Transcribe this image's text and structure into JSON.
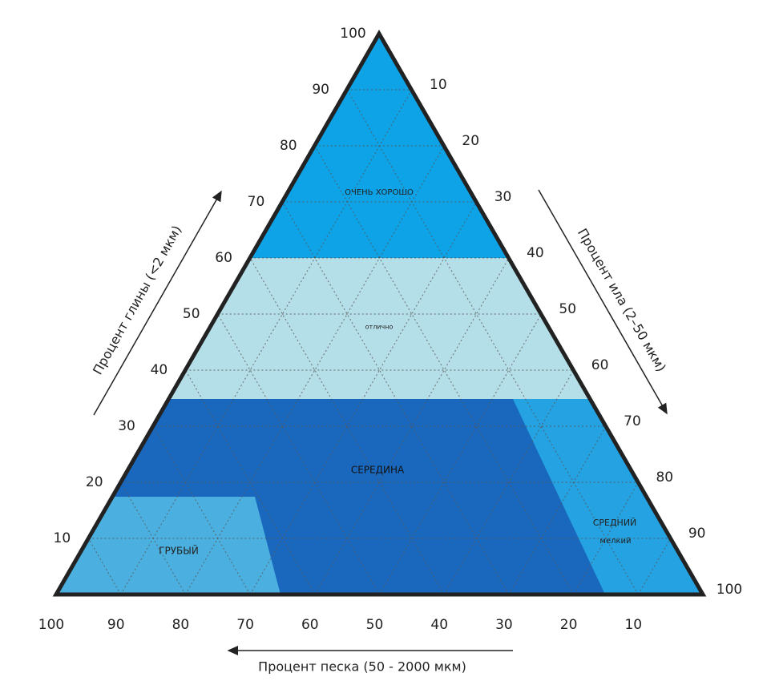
{
  "clay_axis": {
    "title": "Процент глины (<2 мкм)",
    "ticks": [
      100,
      90,
      80,
      70,
      60,
      50,
      40,
      30,
      20,
      10
    ]
  },
  "silt_axis": {
    "title": "Процент ила (2–50 мкм)",
    "ticks": [
      10,
      20,
      30,
      40,
      50,
      60,
      70,
      80,
      90,
      100
    ]
  },
  "sand_axis": {
    "title": "Процент песка (50 - 2000 мкм)",
    "ticks": [
      100,
      90,
      80,
      70,
      60,
      50,
      40,
      30,
      20,
      10
    ]
  },
  "regions": {
    "very_good": "ОЧЕНЬ ХОРОШО",
    "excellent": "отлично",
    "middle": "СЕРЕДИНА",
    "coarse": "ГРУБЫЙ",
    "medium": "СРЕДНИЙ",
    "fine": "мелкий"
  }
}
